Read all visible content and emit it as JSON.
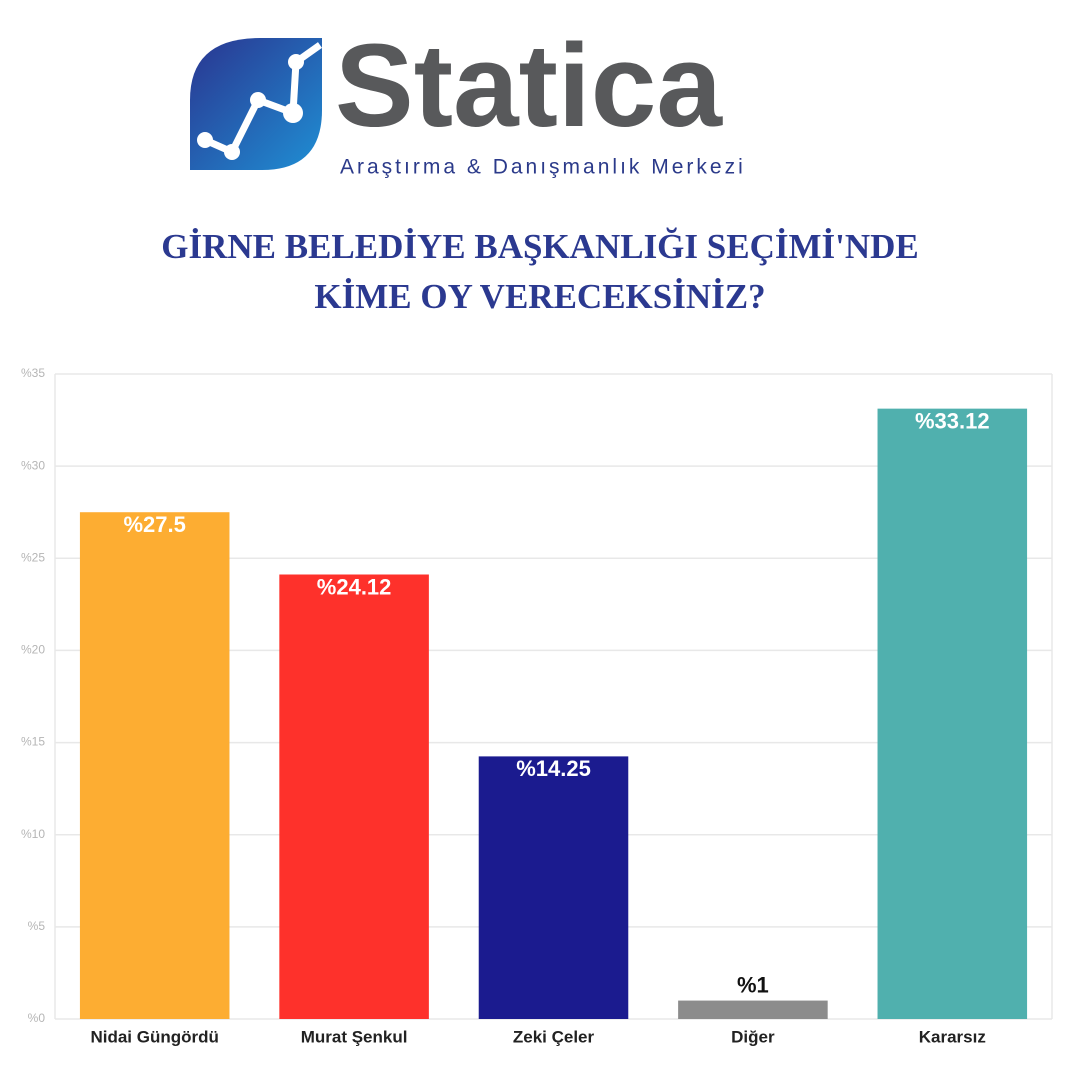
{
  "header": {
    "brand": "Statica",
    "tagline": "Araştırma & Danışmanlık Merkezi"
  },
  "chart_data": {
    "type": "bar",
    "title": "GİRNE BELEDİYE BAŞKANLIĞI SEÇİMİ'NDE KİME OY VERECEKSİNİZ?",
    "categories": [
      "Nidai Güngördü",
      "Murat Şenkul",
      "Zeki Çeler",
      "Diğer",
      "Kararsız"
    ],
    "values": [
      27.5,
      24.12,
      14.25,
      1,
      33.12
    ],
    "value_labels": [
      "%27.5",
      "%24.12",
      "%14.25",
      "%1",
      "%33.12"
    ],
    "colors": [
      "#fdad32",
      "#fe312b",
      "#1b1b8f",
      "#8c8c8c",
      "#50b0ae"
    ],
    "ylim": [
      0,
      35
    ],
    "yticks": [
      {
        "value": 0,
        "label": "%0"
      },
      {
        "value": 5,
        "label": "%5"
      },
      {
        "value": 10,
        "label": "%10"
      },
      {
        "value": 15,
        "label": "%15"
      },
      {
        "value": 20,
        "label": "%20"
      },
      {
        "value": 25,
        "label": "%25"
      },
      {
        "value": 30,
        "label": "%30"
      },
      {
        "value": 35,
        "label": "%35"
      }
    ],
    "grid": true
  }
}
